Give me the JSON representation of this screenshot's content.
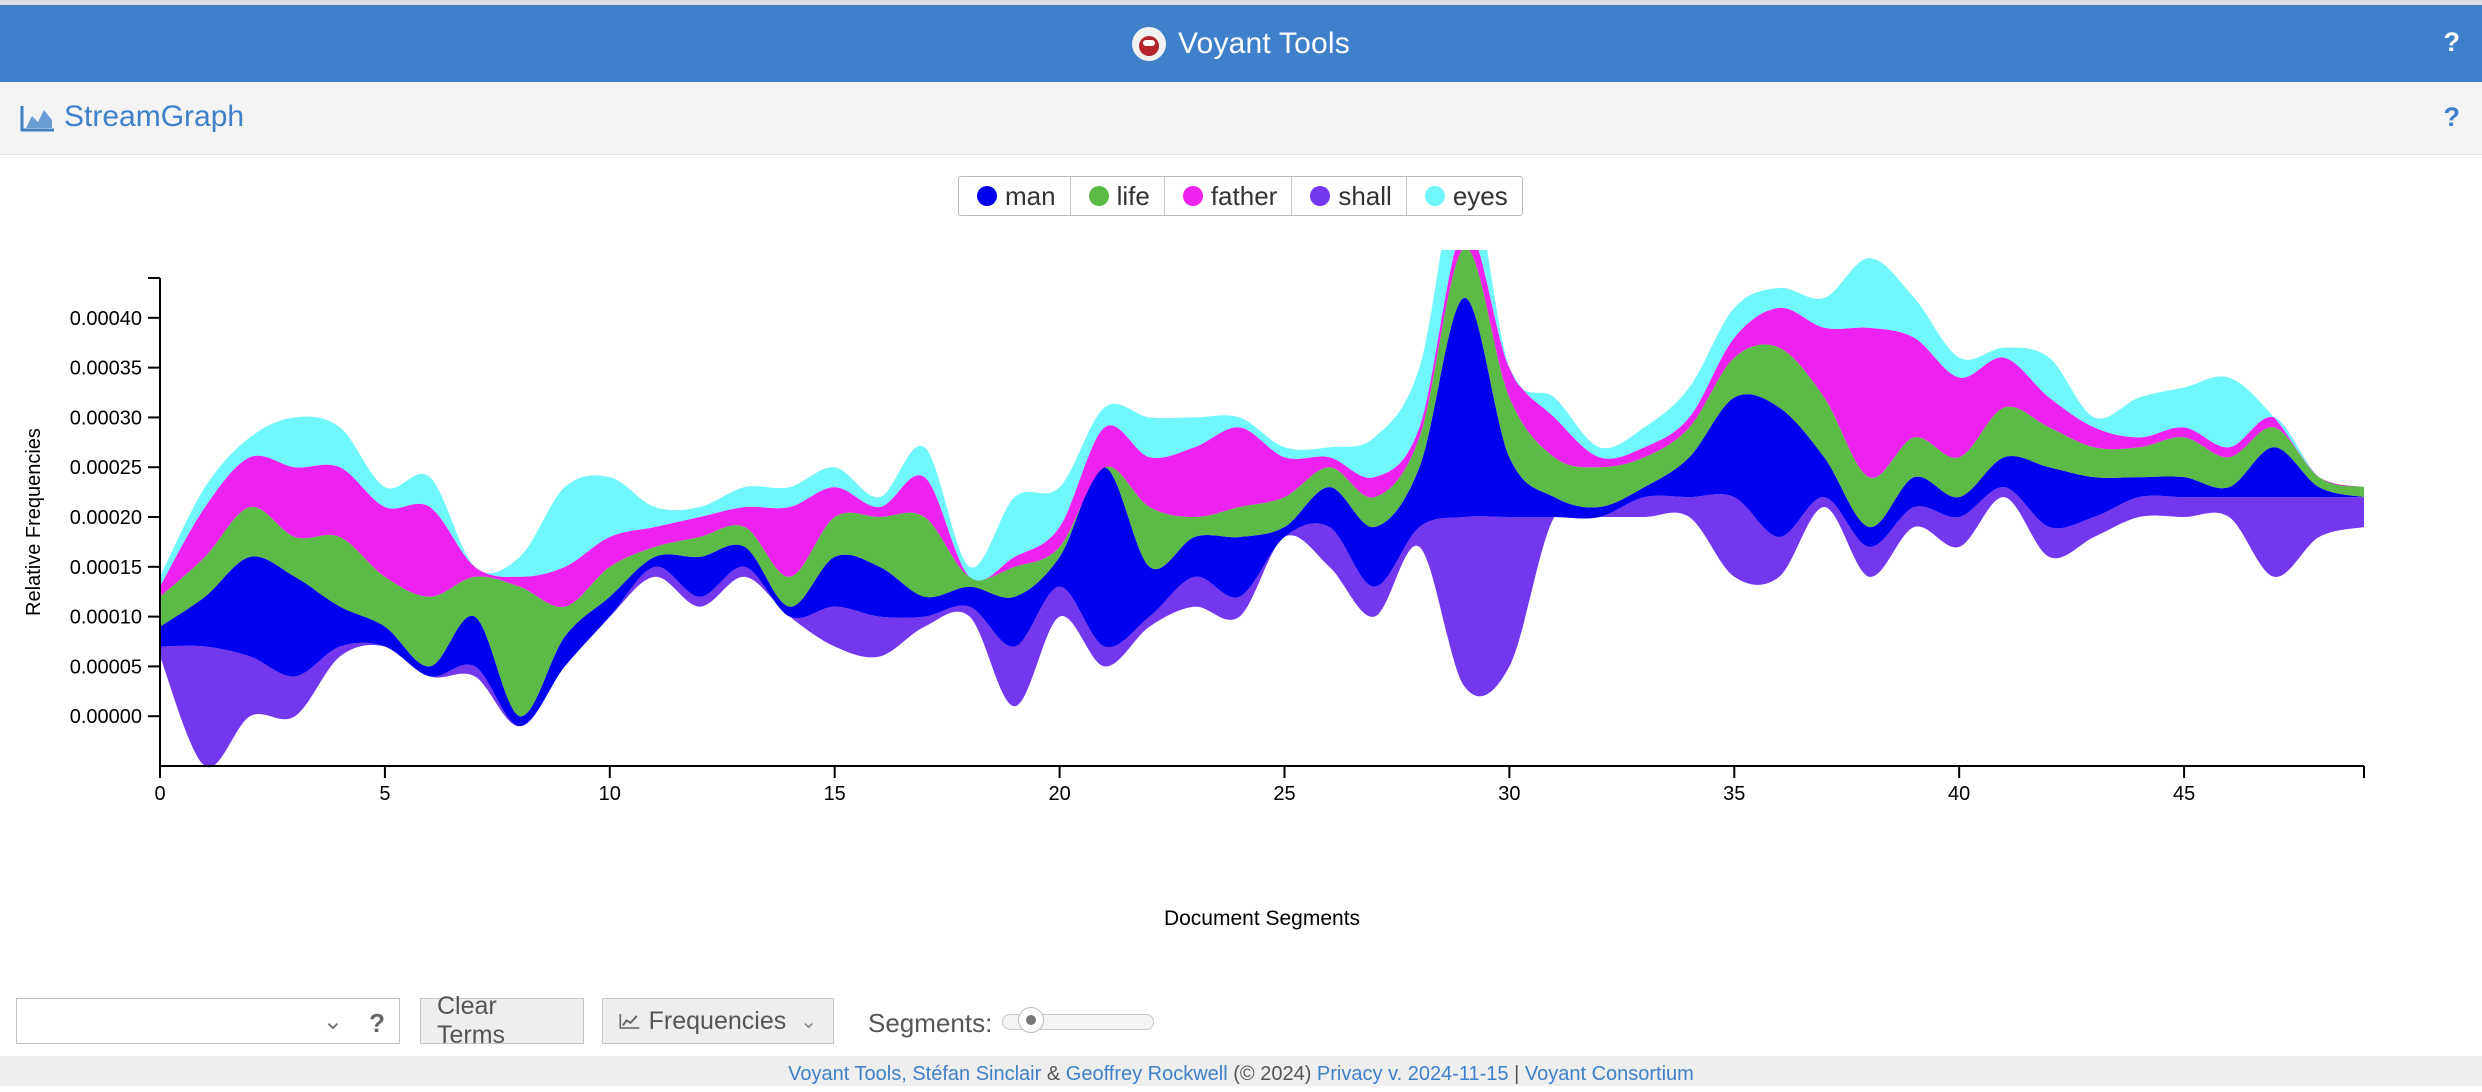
{
  "app": {
    "title": "Voyant Tools"
  },
  "panel": {
    "title": "StreamGraph"
  },
  "help": "?",
  "legend": [
    {
      "label": "man",
      "color": "#0000ee"
    },
    {
      "label": "life",
      "color": "#5cba47"
    },
    {
      "label": "father",
      "color": "#ee22ee"
    },
    {
      "label": "shall",
      "color": "#7337ee"
    },
    {
      "label": "eyes",
      "color": "#6ff7fb"
    }
  ],
  "controls": {
    "clear_label": "Clear Terms",
    "freq_label": "Frequencies",
    "segments_label": "Segments:",
    "segments_value": 50
  },
  "footer": {
    "link1": "Voyant Tools, Stéfan Sinclair",
    "amp": "&",
    "link2": "Geoffrey Rockwell",
    "copyright": "(© 2024)",
    "privacy": "Privacy",
    "version": "v. 2024-11-15",
    "sep": "|",
    "consortium": "Voyant Consortium"
  },
  "chart_data": {
    "type": "area",
    "subtype": "streamgraph",
    "xlabel": "Document Segments",
    "ylabel": "Relative Frequencies",
    "xlim": [
      0,
      49
    ],
    "ylim": [
      -5e-05,
      0.00044
    ],
    "xticks": [
      0,
      5,
      10,
      15,
      20,
      25,
      30,
      35,
      40,
      45
    ],
    "yticks": [
      0,
      5e-05,
      0.0001,
      0.00015,
      0.0002,
      0.00025,
      0.0003,
      0.00035,
      0.0004
    ],
    "ytick_labels": [
      "0.00000",
      "0.00005",
      "0.00010",
      "0.00015",
      "0.00020",
      "0.00025",
      "0.00030",
      "0.00035",
      "0.00040"
    ],
    "x": [
      0,
      1,
      2,
      3,
      4,
      5,
      6,
      7,
      8,
      9,
      10,
      11,
      12,
      13,
      14,
      15,
      16,
      17,
      18,
      19,
      20,
      21,
      22,
      23,
      24,
      25,
      26,
      27,
      28,
      29,
      30,
      31,
      32,
      33,
      34,
      35,
      36,
      37,
      38,
      39,
      40,
      41,
      42,
      43,
      44,
      45,
      46,
      47,
      48,
      49
    ],
    "baseline": [
      6e-05,
      -5e-05,
      0.0,
      0.0,
      6e-05,
      7e-05,
      4e-05,
      4e-05,
      -1e-05,
      5e-05,
      0.0001,
      0.00014,
      0.00011,
      0.00014,
      0.0001,
      7e-05,
      6e-05,
      9e-05,
      0.0001,
      1e-05,
      0.0001,
      5e-05,
      9e-05,
      0.00011,
      0.0001,
      0.00018,
      0.00015,
      0.0001,
      0.00017,
      3e-05,
      5e-05,
      0.0002,
      0.0002,
      0.0002,
      0.0002,
      0.00014,
      0.00014,
      0.00021,
      0.00014,
      0.00019,
      0.00017,
      0.00022,
      0.00016,
      0.00018,
      0.0002,
      0.0002,
      0.0002,
      0.00014,
      0.00018,
      0.00019
    ],
    "series": [
      {
        "name": "shall",
        "color": "#7337ee",
        "values": [
          1e-05,
          0.00012,
          6e-05,
          4e-05,
          1e-05,
          0.0,
          0.0,
          1e-05,
          0.0,
          0.0,
          0.0,
          1e-05,
          1e-05,
          1e-05,
          0.0,
          4e-05,
          4e-05,
          1e-05,
          1e-05,
          6e-05,
          3e-05,
          2e-05,
          1e-05,
          3e-05,
          2e-05,
          0.0,
          4e-05,
          3e-05,
          2e-05,
          0.00017,
          0.00015,
          0.0,
          0.0,
          2e-05,
          2e-05,
          8e-05,
          4e-05,
          1e-05,
          3e-05,
          2e-05,
          3e-05,
          1e-05,
          3e-05,
          2e-05,
          2e-05,
          2e-05,
          2e-05,
          8e-05,
          4e-05,
          3e-05
        ]
      },
      {
        "name": "man",
        "color": "#0000ee",
        "values": [
          2e-05,
          5e-05,
          0.0001,
          0.0001,
          4e-05,
          2e-05,
          1e-05,
          5e-05,
          1e-05,
          3e-05,
          2e-05,
          1e-05,
          4e-05,
          2e-05,
          1e-05,
          5e-05,
          5e-05,
          2e-05,
          2e-05,
          5e-05,
          3e-05,
          0.00018,
          5e-05,
          4e-05,
          6e-05,
          1e-05,
          4e-05,
          6e-05,
          6e-05,
          0.00022,
          6e-05,
          2e-05,
          1e-05,
          1e-05,
          4e-05,
          0.0001,
          0.00013,
          4e-05,
          2e-05,
          3e-05,
          2e-05,
          3e-05,
          6e-05,
          4e-05,
          2e-05,
          2e-05,
          1e-05,
          5e-05,
          1e-05,
          0.0
        ]
      },
      {
        "name": "life",
        "color": "#5cba47",
        "values": [
          3e-05,
          4e-05,
          5e-05,
          4e-05,
          7e-05,
          5e-05,
          7e-05,
          4e-05,
          0.00013,
          3e-05,
          3e-05,
          1e-05,
          2e-05,
          2e-05,
          3e-05,
          4e-05,
          5e-05,
          8e-05,
          1e-05,
          3e-05,
          1e-05,
          0.0,
          6e-05,
          2e-05,
          3e-05,
          3e-05,
          2e-05,
          3e-05,
          3e-05,
          5e-05,
          6e-05,
          4e-05,
          4e-05,
          3e-05,
          3e-05,
          4e-05,
          6e-05,
          6e-05,
          5e-05,
          4e-05,
          4e-05,
          5e-05,
          4e-05,
          3e-05,
          3e-05,
          4e-05,
          3e-05,
          2e-05,
          1e-05,
          1e-05
        ]
      },
      {
        "name": "father",
        "color": "#ee22ee",
        "values": [
          1e-05,
          5e-05,
          5e-05,
          7e-05,
          7e-05,
          7e-05,
          9e-05,
          1e-05,
          1e-05,
          4e-05,
          3e-05,
          2e-05,
          2e-05,
          2e-05,
          7e-05,
          3e-05,
          1e-05,
          4e-05,
          0.0,
          1e-05,
          2e-05,
          4e-05,
          5e-05,
          7e-05,
          8e-05,
          4e-05,
          1e-05,
          2e-05,
          1e-05,
          2e-05,
          3e-05,
          4e-05,
          1e-05,
          1e-05,
          1e-05,
          2e-05,
          4e-05,
          7e-05,
          0.00015,
          0.0001,
          8e-05,
          5e-05,
          3e-05,
          2e-05,
          1e-05,
          1e-05,
          1e-05,
          1e-05,
          0.0,
          0.0
        ]
      },
      {
        "name": "eyes",
        "color": "#6ff7fb",
        "values": [
          1e-05,
          2e-05,
          2e-05,
          5e-05,
          4e-05,
          2e-05,
          3e-05,
          0.0,
          2e-05,
          8e-05,
          6e-05,
          2e-05,
          1e-05,
          2e-05,
          2e-05,
          2e-05,
          1e-05,
          3e-05,
          1e-05,
          6e-05,
          4e-05,
          2e-05,
          4e-05,
          3e-05,
          1e-05,
          1e-05,
          1e-05,
          4e-05,
          6e-05,
          7e-05,
          0.0,
          2e-05,
          1e-05,
          2e-05,
          3e-05,
          3e-05,
          2e-05,
          3e-05,
          7e-05,
          4e-05,
          2e-05,
          1e-05,
          4e-05,
          1e-05,
          4e-05,
          4e-05,
          7e-05,
          0.0,
          0.0,
          0.0
        ]
      }
    ]
  }
}
